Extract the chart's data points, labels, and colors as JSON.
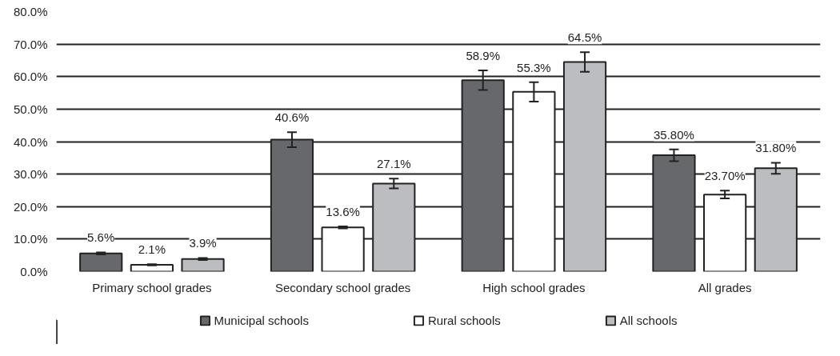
{
  "chart_data": {
    "type": "bar",
    "categories": [
      "Primary school grades",
      "Secondary school grades",
      "High school grades",
      "All grades"
    ],
    "series": [
      {
        "name": "Municipal schools",
        "color": "#67686c",
        "values": [
          5.6,
          40.6,
          58.9,
          35.8
        ],
        "errors": [
          0.3,
          2.3,
          3.0,
          1.8
        ],
        "value_labels": [
          "5.6%",
          "40.6%",
          "58.9%",
          "35.80%"
        ]
      },
      {
        "name": "Rural schools",
        "color": "#ffffff",
        "values": [
          2.1,
          13.6,
          55.3,
          23.7
        ],
        "errors": [
          0.2,
          0.3,
          3.0,
          1.2
        ],
        "value_labels": [
          "2.1%",
          "13.6%",
          "55.3%",
          "23.70%"
        ]
      },
      {
        "name": "All schools",
        "color": "#bcbdc1",
        "values": [
          3.9,
          27.1,
          64.5,
          31.8
        ],
        "errors": [
          0.3,
          1.5,
          3.0,
          1.7
        ],
        "value_labels": [
          "3.9%",
          "27.1%",
          "64.5%",
          "31.80%"
        ]
      }
    ],
    "ylim": [
      0,
      80
    ],
    "yticks": [
      {
        "value": 0,
        "label": "0.0%"
      },
      {
        "value": 10,
        "label": "10.0%"
      },
      {
        "value": 20,
        "label": "20.0%"
      },
      {
        "value": 30,
        "label": "30.0%"
      },
      {
        "value": 40,
        "label": "40.0%"
      },
      {
        "value": 50,
        "label": "50.0%"
      },
      {
        "value": 60,
        "label": "60.0%"
      },
      {
        "value": 70,
        "label": "70.0%"
      },
      {
        "value": 80,
        "label": "80.0%"
      }
    ],
    "grid": "y",
    "legend": "bottom"
  }
}
